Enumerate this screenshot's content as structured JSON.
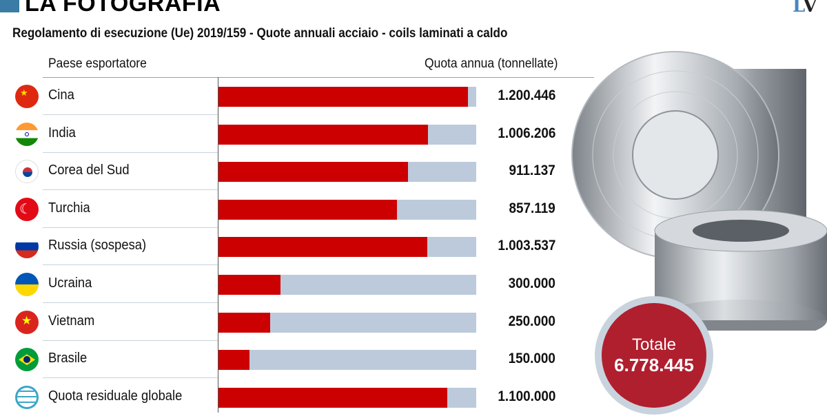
{
  "header": {
    "title": "LA FOTOGRAFIA",
    "logo": "LV"
  },
  "chart_data": {
    "type": "bar",
    "title": "Regolamento di esecuzione (Ue) 2019/159 - Quote annuali acciaio - coils laminati a caldo",
    "xlabel": "Paese esportatore",
    "ylabel": "Quota annua (tonnellate)",
    "categories": [
      "Cina",
      "India",
      "Corea del Sud",
      "Turchia",
      "Russia (sospesa)",
      "Ucraina",
      "Vietnam",
      "Brasile",
      "Quota residuale globale"
    ],
    "values": [
      1200446,
      1006206,
      911137,
      857119,
      1003537,
      300000,
      250000,
      150000,
      1100000
    ],
    "value_labels": [
      "1.200.446",
      "1.006.206",
      "911.137",
      "857.119",
      "1.003.537",
      "300.000",
      "250.000",
      "150.000",
      "1.100.000"
    ],
    "flags": [
      "china",
      "india",
      "south-korea",
      "turkey",
      "russia",
      "ukraine",
      "vietnam",
      "brazil",
      "globe"
    ],
    "xlim": [
      0,
      1240000
    ],
    "total_label": "Totale",
    "total_value": "6.778.445",
    "colors": {
      "bar": "#cc0000",
      "track": "#bccadb",
      "total": "#b01f2e"
    }
  }
}
